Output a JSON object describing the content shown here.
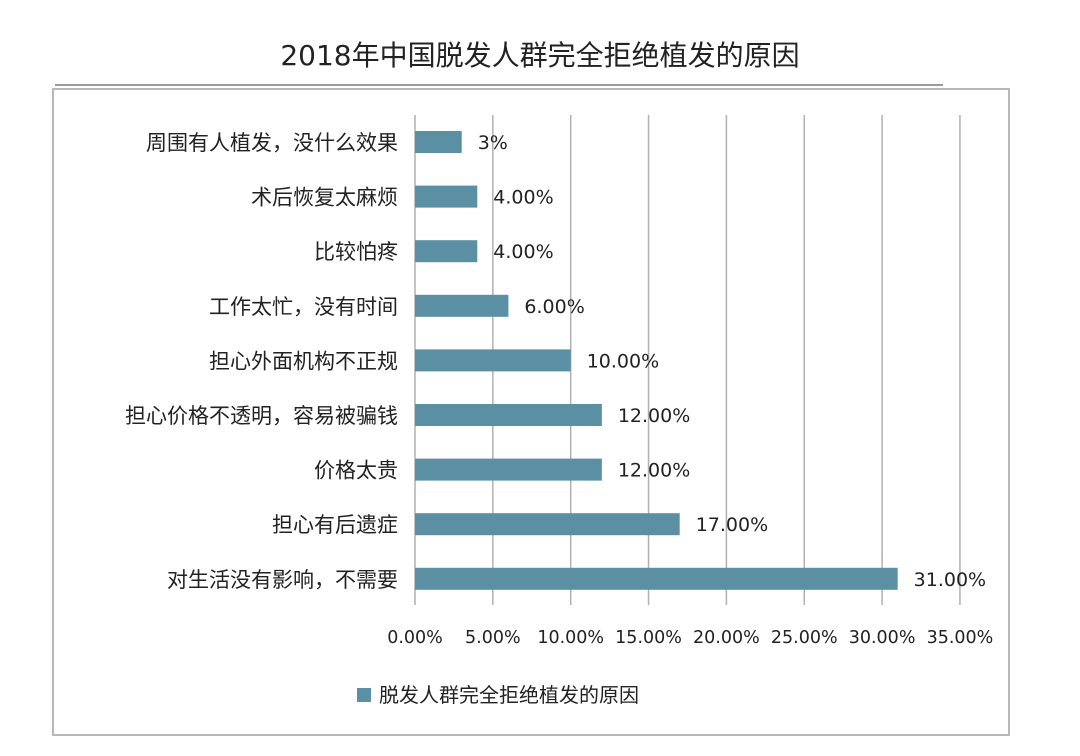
{
  "chart_data": {
    "type": "bar",
    "orientation": "horizontal",
    "title": "2018年中国脱发人群完全拒绝植发的原因",
    "categories": [
      "周围有人植发，没什么效果",
      "术后恢复太麻烦",
      "比较怕疼",
      "工作太忙，没有时间",
      "担心外面机构不正规",
      "担心价格不透明，容易被骗钱",
      "价格太贵",
      "担心有后遗症",
      "对生活没有影响，不需要"
    ],
    "values": [
      3,
      4,
      4,
      6,
      10,
      12,
      12,
      17,
      31
    ],
    "data_labels": [
      "3%",
      "4.00%",
      "4.00%",
      "6.00%",
      "10.00%",
      "12.00%",
      "12.00%",
      "17.00%",
      "31.00%"
    ],
    "xlim": [
      0,
      35
    ],
    "x_ticks": [
      0,
      5,
      10,
      15,
      20,
      25,
      30,
      35
    ],
    "x_tick_labels": [
      "0.00%",
      "5.00%",
      "10.00%",
      "15.00%",
      "20.00%",
      "25.00%",
      "30.00%",
      "35.00%"
    ],
    "grid": "vertical",
    "legend": {
      "position": "bottom",
      "entries": [
        "脱发人群完全拒绝植发的原因"
      ]
    },
    "series_color": "#5b8fa4"
  }
}
